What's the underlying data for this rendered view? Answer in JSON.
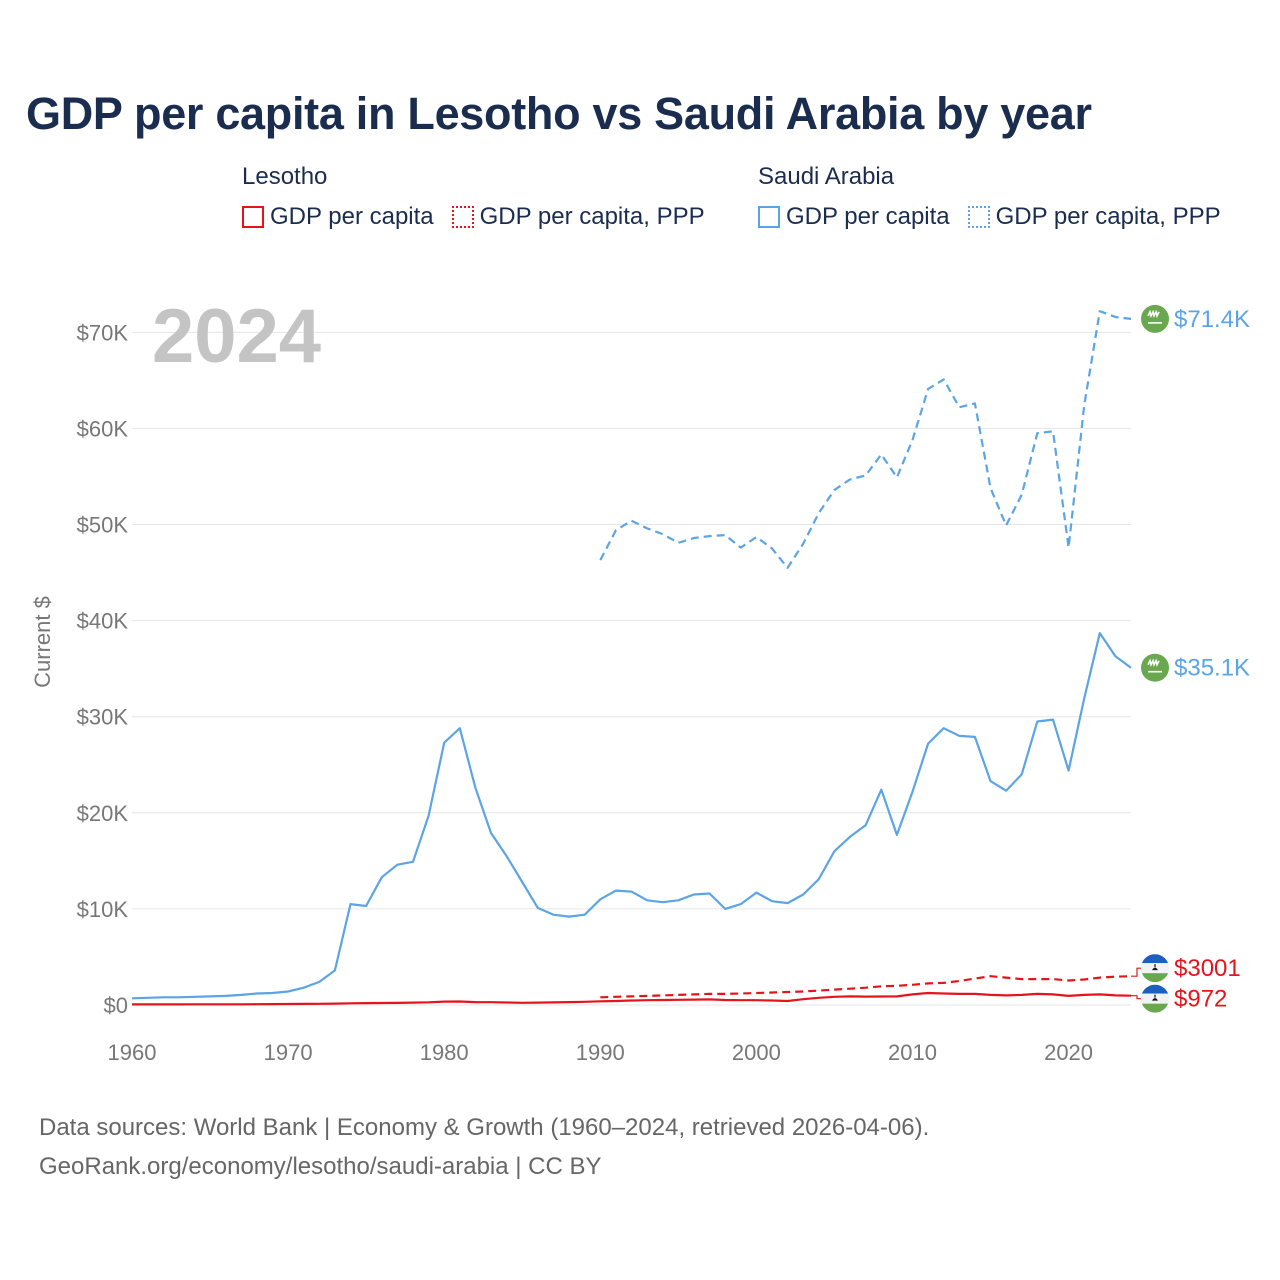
{
  "title": "GDP per capita in Lesotho vs Saudi Arabia by year",
  "legend": {
    "groups": [
      {
        "name": "Lesotho",
        "color": "#e5141b",
        "items": [
          {
            "label": "GDP per capita",
            "style": "solid"
          },
          {
            "label": "GDP per capita, PPP",
            "style": "dotted"
          }
        ]
      },
      {
        "name": "Saudi Arabia",
        "color": "#5ba4e5",
        "items": [
          {
            "label": "GDP per capita",
            "style": "solid"
          },
          {
            "label": "GDP per capita, PPP",
            "style": "dotted"
          }
        ]
      }
    ]
  },
  "footer": {
    "line1": "Data sources: World Bank | Economy & Growth (1960–2024, retrieved 2026-04-06).",
    "line2": "GeoRank.org/economy/lesotho/saudi-arabia | CC BY"
  },
  "chart_data": {
    "type": "line",
    "title": "GDP per capita in Lesotho vs Saudi Arabia by year",
    "year_overlay": "2024",
    "ylabel": "Current $",
    "xlabel": "",
    "xlim": [
      1960,
      2024
    ],
    "ylim": [
      0,
      72000
    ],
    "xticks": [
      1960,
      1970,
      1980,
      1990,
      2000,
      2010,
      2020
    ],
    "xtick_labels": [
      "1960",
      "1970",
      "1980",
      "1990",
      "2000",
      "2010",
      "2020"
    ],
    "yticks": [
      0,
      10000,
      20000,
      30000,
      40000,
      50000,
      60000,
      70000
    ],
    "ytick_labels": [
      "$0",
      "$10K",
      "$20K",
      "$30K",
      "$40K",
      "$50K",
      "$60K",
      "$70K"
    ],
    "grid": true,
    "legend_position": "top",
    "series": [
      {
        "name": "Saudi Arabia GDP per capita, PPP",
        "country": "Saudi Arabia",
        "color": "#5ba4e5",
        "dash": "dashed",
        "end_label": "$71.4K",
        "x": [
          1990,
          1991,
          1992,
          1993,
          1994,
          1995,
          1996,
          1997,
          1998,
          1999,
          2000,
          2001,
          2002,
          2003,
          2004,
          2005,
          2006,
          2007,
          2008,
          2009,
          2010,
          2011,
          2012,
          2013,
          2014,
          2015,
          2016,
          2017,
          2018,
          2019,
          2020,
          2021,
          2022,
          2023,
          2024
        ],
        "y": [
          46300,
          49400,
          50400,
          49600,
          49000,
          48100,
          48600,
          48800,
          48900,
          47600,
          48700,
          47500,
          45500,
          48000,
          51200,
          53600,
          54700,
          55100,
          57300,
          54900,
          58800,
          64100,
          65100,
          62200,
          62600,
          53800,
          49900,
          53100,
          59500,
          59700,
          47600,
          62400,
          72200,
          71600,
          71400
        ]
      },
      {
        "name": "Saudi Arabia GDP per capita",
        "country": "Saudi Arabia",
        "color": "#5ba4e5",
        "dash": "solid",
        "end_label": "$35.1K",
        "x": [
          1960,
          1961,
          1962,
          1963,
          1964,
          1965,
          1966,
          1967,
          1968,
          1969,
          1970,
          1971,
          1972,
          1973,
          1974,
          1975,
          1976,
          1977,
          1978,
          1979,
          1980,
          1981,
          1982,
          1983,
          1984,
          1985,
          1986,
          1987,
          1988,
          1989,
          1990,
          1991,
          1992,
          1993,
          1994,
          1995,
          1996,
          1997,
          1998,
          1999,
          2000,
          2001,
          2002,
          2003,
          2004,
          2005,
          2006,
          2007,
          2008,
          2009,
          2010,
          2011,
          2012,
          2013,
          2014,
          2015,
          2016,
          2017,
          2018,
          2019,
          2020,
          2021,
          2022,
          2023,
          2024
        ],
        "y": [
          700,
          750,
          800,
          800,
          850,
          900,
          950,
          1050,
          1200,
          1250,
          1400,
          1800,
          2400,
          3600,
          10500,
          10300,
          13300,
          14600,
          14900,
          19700,
          27300,
          28800,
          22600,
          17900,
          15500,
          12800,
          10100,
          9400,
          9200,
          9400,
          11000,
          11900,
          11800,
          10900,
          10700,
          10900,
          11500,
          11600,
          10000,
          10500,
          11700,
          10800,
          10600,
          11500,
          13100,
          16000,
          17500,
          18700,
          22400,
          17700,
          22200,
          27200,
          28800,
          28000,
          27900,
          23300,
          22300,
          24000,
          29500,
          29700,
          24400,
          31900,
          38700,
          36300,
          35100
        ]
      },
      {
        "name": "Lesotho GDP per capita, PPP",
        "country": "Lesotho",
        "color": "#e5141b",
        "dash": "dashed",
        "end_label": "$3001",
        "x": [
          1990,
          1991,
          1992,
          1993,
          1994,
          1995,
          1996,
          1997,
          1998,
          1999,
          2000,
          2001,
          2002,
          2003,
          2004,
          2005,
          2006,
          2007,
          2008,
          2009,
          2010,
          2011,
          2012,
          2013,
          2014,
          2015,
          2016,
          2017,
          2018,
          2019,
          2020,
          2021,
          2022,
          2023,
          2024
        ],
        "y": [
          800,
          850,
          900,
          950,
          1000,
          1050,
          1100,
          1150,
          1150,
          1200,
          1250,
          1300,
          1350,
          1400,
          1500,
          1600,
          1700,
          1800,
          1950,
          2000,
          2100,
          2250,
          2300,
          2500,
          2750,
          3000,
          2850,
          2700,
          2700,
          2700,
          2550,
          2650,
          2850,
          2950,
          3001
        ]
      },
      {
        "name": "Lesotho GDP per capita",
        "country": "Lesotho",
        "color": "#e5141b",
        "dash": "solid",
        "end_label": "$972",
        "x": [
          1960,
          1961,
          1962,
          1963,
          1964,
          1965,
          1966,
          1967,
          1968,
          1969,
          1970,
          1971,
          1972,
          1973,
          1974,
          1975,
          1976,
          1977,
          1978,
          1979,
          1980,
          1981,
          1982,
          1983,
          1984,
          1985,
          1986,
          1987,
          1988,
          1989,
          1990,
          1991,
          1992,
          1993,
          1994,
          1995,
          1996,
          1997,
          1998,
          1999,
          2000,
          2001,
          2002,
          2003,
          2004,
          2005,
          2006,
          2007,
          2008,
          2009,
          2010,
          2011,
          2012,
          2013,
          2014,
          2015,
          2016,
          2017,
          2018,
          2019,
          2020,
          2021,
          2022,
          2023,
          2024
        ],
        "y": [
          60,
          62,
          64,
          66,
          68,
          70,
          72,
          75,
          80,
          90,
          100,
          110,
          120,
          150,
          180,
          200,
          210,
          220,
          250,
          280,
          350,
          360,
          300,
          290,
          260,
          230,
          250,
          270,
          300,
          330,
          380,
          420,
          470,
          500,
          520,
          540,
          560,
          580,
          520,
          500,
          500,
          470,
          420,
          600,
          750,
          850,
          900,
          870,
          880,
          900,
          1100,
          1250,
          1200,
          1150,
          1150,
          1050,
          1000,
          1050,
          1150,
          1100,
          950,
          1050,
          1100,
          1000,
          972
        ]
      }
    ]
  }
}
